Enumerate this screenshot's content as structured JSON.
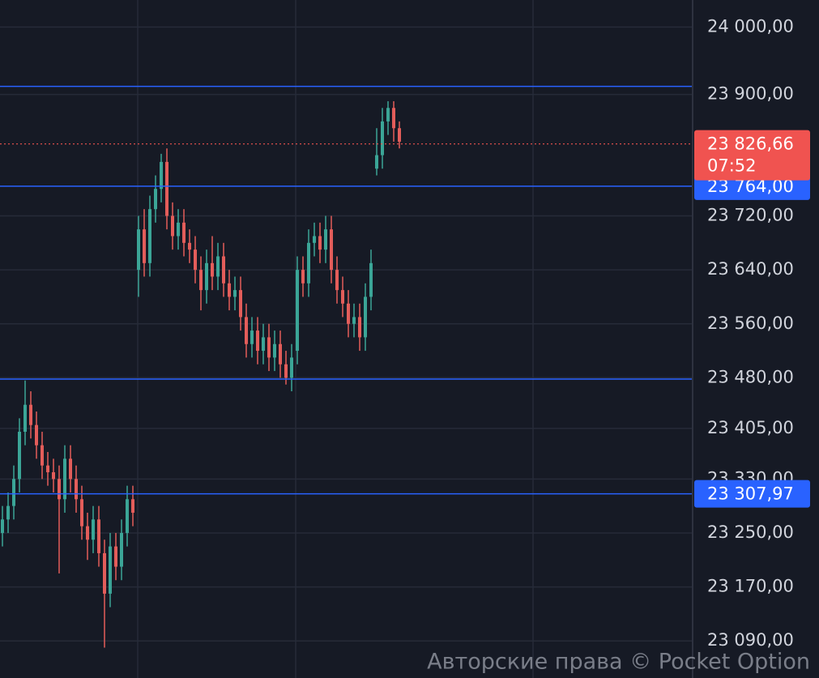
{
  "chart_data": {
    "type": "candlestick",
    "up_color": "#3ba597",
    "down_color": "#e35d5a",
    "grid": true,
    "ylim": [
      23035,
      24040
    ],
    "yticks": [
      {
        "value": 24000,
        "label": "24 000,00"
      },
      {
        "value": 23900,
        "label": "23 900,00"
      },
      {
        "value": 23720,
        "label": "23 720,00"
      },
      {
        "value": 23640,
        "label": "23 640,00"
      },
      {
        "value": 23560,
        "label": "23 560,00"
      },
      {
        "value": 23480,
        "label": "23 480,00"
      },
      {
        "value": 23405,
        "label": "23 405,00"
      },
      {
        "value": 23330,
        "label": "23 330,00"
      },
      {
        "value": 23250,
        "label": "23 250,00"
      },
      {
        "value": 23170,
        "label": "23 170,00"
      },
      {
        "value": 23090,
        "label": "23 090,00"
      }
    ],
    "open": [
      23250,
      23270,
      23290,
      23330,
      23400,
      23440,
      23410,
      23380,
      23350,
      23340,
      23330,
      23300,
      23360,
      23330,
      23300,
      23260,
      23240,
      23270,
      23220,
      23160,
      23230,
      23200,
      23250,
      23300,
      23640,
      23700,
      23650,
      23730,
      23760,
      23800,
      23720,
      23690,
      23710,
      23680,
      23670,
      23640,
      23610,
      23650,
      23630,
      23660,
      23620,
      23600,
      23610,
      23570,
      23530,
      23550,
      23520,
      23540,
      23510,
      23530,
      23500,
      23480,
      23520,
      23640,
      23620,
      23680,
      23690,
      23670,
      23700,
      23640,
      23610,
      23590,
      23560,
      23570,
      23540,
      23600,
      23790,
      23810,
      23860,
      23880,
      23850
    ],
    "high": [
      23290,
      23310,
      23350,
      23420,
      23476,
      23460,
      23430,
      23400,
      23370,
      23360,
      23350,
      23380,
      23380,
      23350,
      23320,
      23280,
      23290,
      23290,
      23240,
      23250,
      23250,
      23270,
      23320,
      23320,
      23720,
      23730,
      23750,
      23780,
      23812,
      23820,
      23740,
      23730,
      23730,
      23700,
      23690,
      23660,
      23670,
      23690,
      23680,
      23680,
      23640,
      23630,
      23630,
      23590,
      23570,
      23570,
      23560,
      23560,
      23550,
      23550,
      23520,
      23530,
      23660,
      23660,
      23700,
      23710,
      23710,
      23720,
      23720,
      23660,
      23630,
      23610,
      23590,
      23590,
      23620,
      23670,
      23850,
      23880,
      23890,
      23890,
      23860
    ],
    "low": [
      23230,
      23250,
      23270,
      23310,
      23380,
      23390,
      23360,
      23330,
      23320,
      23310,
      23190,
      23280,
      23310,
      23280,
      23240,
      23210,
      23220,
      23200,
      23080,
      23140,
      23180,
      23180,
      23230,
      23260,
      23600,
      23630,
      23630,
      23710,
      23740,
      23700,
      23670,
      23670,
      23660,
      23650,
      23620,
      23580,
      23590,
      23610,
      23610,
      23600,
      23580,
      23580,
      23550,
      23510,
      23510,
      23500,
      23500,
      23490,
      23490,
      23480,
      23470,
      23460,
      23500,
      23600,
      23600,
      23660,
      23650,
      23650,
      23620,
      23590,
      23570,
      23540,
      23540,
      23520,
      23520,
      23580,
      23780,
      23790,
      23840,
      23830,
      23820
    ],
    "close": [
      23270,
      23290,
      23330,
      23400,
      23440,
      23410,
      23380,
      23350,
      23340,
      23330,
      23300,
      23360,
      23330,
      23300,
      23260,
      23240,
      23270,
      23220,
      23160,
      23230,
      23200,
      23250,
      23300,
      23280,
      23700,
      23650,
      23730,
      23760,
      23800,
      23720,
      23690,
      23710,
      23680,
      23670,
      23640,
      23610,
      23650,
      23630,
      23660,
      23620,
      23600,
      23610,
      23570,
      23530,
      23550,
      23520,
      23540,
      23510,
      23530,
      23500,
      23480,
      23510,
      23640,
      23620,
      23680,
      23690,
      23670,
      23700,
      23640,
      23610,
      23590,
      23560,
      23570,
      23540,
      23600,
      23650,
      23810,
      23860,
      23880,
      23850,
      23830
    ],
    "levels": [
      {
        "value": 23912,
        "color": "#2962ff"
      },
      {
        "value": 23764,
        "label": "23 764,00",
        "color": "#2962ff"
      },
      {
        "value": 23478,
        "color": "#2962ff"
      },
      {
        "value": 23307.97,
        "label": "23 307,97",
        "color": "#2962ff"
      }
    ],
    "current_price": {
      "value": 23826.66,
      "label": "23 826,66",
      "timer": "07:52",
      "color": "#f05350"
    },
    "watermark": "Авторские права © Pocket Option"
  }
}
